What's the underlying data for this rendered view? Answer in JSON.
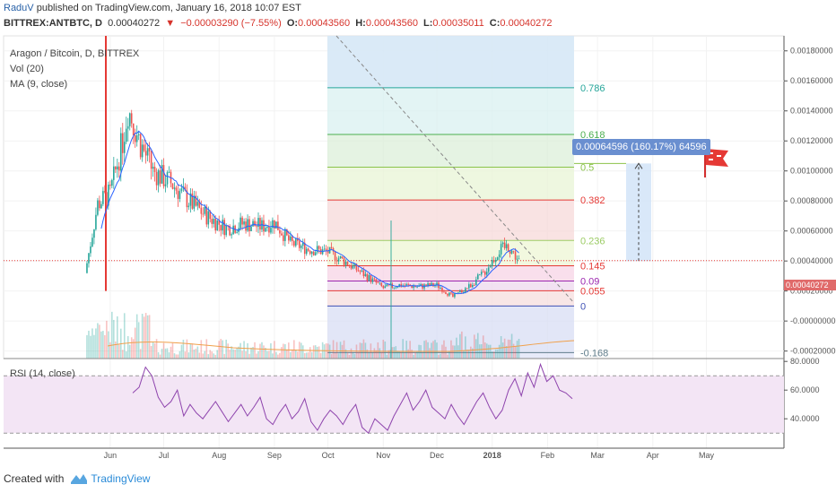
{
  "header": {
    "author": "RaduV",
    "published": "published on TradingView.com, January 16, 2018 10:07 EST",
    "symbol": "BITTREX:ANTBTC, D",
    "last": "0.00040272",
    "change_arrow": "▼",
    "change": "−0.00003290 (−7.55%)",
    "o_label": "O:",
    "o": "0.00043560",
    "h_label": "H:",
    "h": "0.00043560",
    "l_label": "L:",
    "l": "0.00035011",
    "c_label": "C:",
    "c": "0.00040272"
  },
  "legend": {
    "title": "Aragon / Bitcoin, D, BITTREX",
    "vol": "Vol (20)",
    "ma": "MA (9, close)",
    "rsi": "RSI (14, close)"
  },
  "callout": "0.00064596 (160.17%) 64596",
  "last_price_label": "0.00040272",
  "footer": {
    "created_with": "Created with",
    "brand": "TradingView"
  },
  "colors": {
    "up": "#26a69a",
    "down": "#ef5350",
    "ma": "#2962ff",
    "rsi": "#8e44ad",
    "accent": "#2962a8"
  },
  "chart_data": [
    {
      "type": "candlestick",
      "title": "Aragon / Bitcoin, D, BITTREX",
      "x_ticks": [
        "Jun",
        "Jul",
        "Aug",
        "Sep",
        "Oct",
        "Nov",
        "Dec",
        "2018",
        "Feb",
        "Mar",
        "Apr",
        "May"
      ],
      "y_ticks": [
        "0.00180000",
        "0.00160000",
        "0.00140000",
        "0.00120000",
        "0.00100000",
        "0.00080000",
        "0.00060000",
        "0.00040000",
        "0.00020000",
        "-0.00000000",
        "-0.00020000"
      ],
      "ylim": [
        -0.00025,
        0.0019
      ],
      "approx_close_series": [
        {
          "date": "2017-05-18",
          "close": 0.00032
        },
        {
          "date": "2017-05-25",
          "close": 0.00078
        },
        {
          "date": "2017-06-01",
          "close": 0.00085
        },
        {
          "date": "2017-06-08",
          "close": 0.0012
        },
        {
          "date": "2017-06-11",
          "close": 0.00142
        },
        {
          "date": "2017-06-18",
          "close": 0.00118
        },
        {
          "date": "2017-06-25",
          "close": 0.001
        },
        {
          "date": "2017-07-05",
          "close": 0.00092
        },
        {
          "date": "2017-07-15",
          "close": 0.0008
        },
        {
          "date": "2017-07-25",
          "close": 0.0007
        },
        {
          "date": "2017-08-05",
          "close": 0.00062
        },
        {
          "date": "2017-08-15",
          "close": 0.00065
        },
        {
          "date": "2017-08-25",
          "close": 0.00063
        },
        {
          "date": "2017-09-01",
          "close": 0.00066
        },
        {
          "date": "2017-09-10",
          "close": 0.00052
        },
        {
          "date": "2017-09-20",
          "close": 0.00048
        },
        {
          "date": "2017-10-01",
          "close": 0.00046
        },
        {
          "date": "2017-10-10",
          "close": 0.0004
        },
        {
          "date": "2017-10-20",
          "close": 0.00032
        },
        {
          "date": "2017-11-01",
          "close": 0.00022
        },
        {
          "date": "2017-11-10",
          "close": 0.00024
        },
        {
          "date": "2017-11-20",
          "close": 0.00023
        },
        {
          "date": "2017-12-01",
          "close": 0.00024
        },
        {
          "date": "2017-12-10",
          "close": 0.00016
        },
        {
          "date": "2017-12-20",
          "close": 0.00024
        },
        {
          "date": "2017-12-28",
          "close": 0.00033
        },
        {
          "date": "2018-01-05",
          "close": 0.00047
        },
        {
          "date": "2018-01-10",
          "close": 0.0005
        },
        {
          "date": "2018-01-16",
          "close": 0.0004
        }
      ],
      "fib_levels": [
        {
          "label": "0.786",
          "color": "#26a69a"
        },
        {
          "label": "0.618",
          "color": "#4caf50"
        },
        {
          "label": "0.5",
          "color": "#8bc34a"
        },
        {
          "label": "0.382",
          "color": "#e53935"
        },
        {
          "label": "0.236",
          "color": "#9ccc65"
        },
        {
          "label": "0.145",
          "color": "#e53935"
        },
        {
          "label": "0.09",
          "color": "#9c27b0"
        },
        {
          "label": "0.055",
          "color": "#e53935"
        },
        {
          "label": "0",
          "color": "#3f51b5"
        },
        {
          "label": "-0.168",
          "color": "#607d8b"
        }
      ]
    },
    {
      "type": "line",
      "title": "RSI (14, close)",
      "y_ticks": [
        "80.0000",
        "60.0000",
        "40.0000"
      ],
      "ylim": [
        22,
        82
      ],
      "values": [
        58,
        62,
        76,
        70,
        55,
        48,
        52,
        60,
        42,
        50,
        44,
        40,
        46,
        52,
        45,
        38,
        44,
        50,
        42,
        48,
        55,
        40,
        36,
        44,
        50,
        40,
        45,
        54,
        38,
        32,
        40,
        46,
        42,
        36,
        44,
        50,
        34,
        30,
        40,
        36,
        32,
        42,
        50,
        58,
        46,
        52,
        60,
        48,
        44,
        40,
        50,
        42,
        36,
        44,
        52,
        58,
        48,
        40,
        46,
        60,
        68,
        56,
        72,
        62,
        78,
        66,
        70,
        60,
        58,
        54
      ]
    }
  ]
}
